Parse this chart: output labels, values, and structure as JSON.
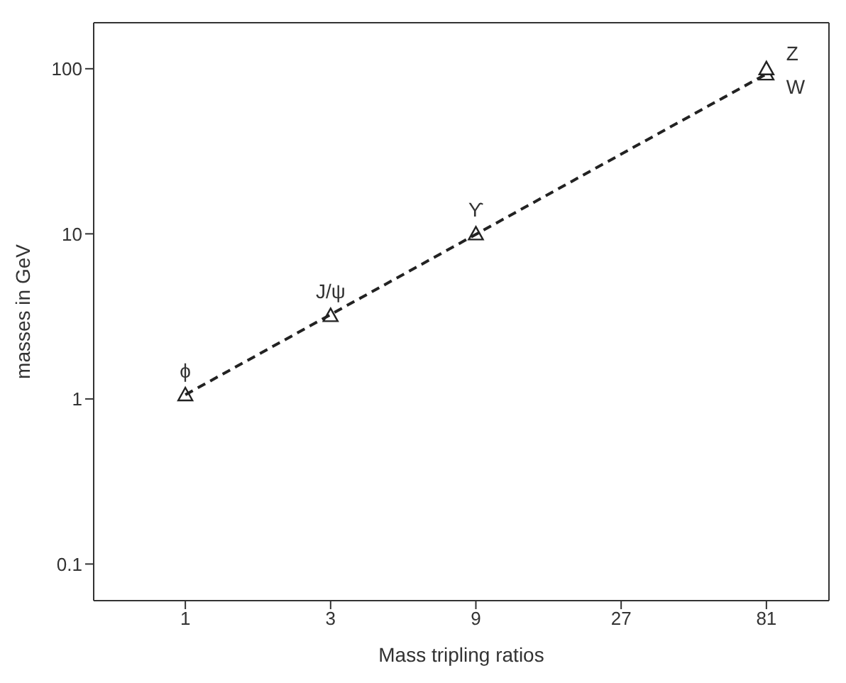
{
  "chart_data": {
    "type": "scatter",
    "xlabel": "Mass tripling ratios",
    "ylabel": "masses in GeV",
    "log": "xy",
    "xlim": [
      0.5,
      130
    ],
    "xticks": [
      1,
      3,
      9,
      27,
      81
    ],
    "ylim": [
      0.06,
      190
    ],
    "yticks": [
      0.1,
      1,
      10,
      100
    ],
    "grid": false,
    "legend": false,
    "series": [
      {
        "color": "#222222",
        "marker": "triangle",
        "x": [
          1,
          3,
          9,
          81,
          81
        ],
        "values": [
          1.06,
          3.2,
          10,
          93,
          100
        ]
      },
      {
        "type": "line",
        "color": "#222222",
        "line_style": "dashed",
        "marker": "none",
        "x": [
          1,
          81
        ],
        "values": [
          1.06,
          93
        ]
      }
    ],
    "annotations": [
      {
        "text": "ϕ",
        "x": 1,
        "y": 1.06
      },
      {
        "text": "J/ψ",
        "x": 3,
        "y": 3.2
      },
      {
        "text": "ϒ",
        "x": 9,
        "y": 10
      },
      {
        "text": "Z",
        "x": 81,
        "y": 100
      },
      {
        "text": "W",
        "x": 81,
        "y": 93
      }
    ]
  }
}
